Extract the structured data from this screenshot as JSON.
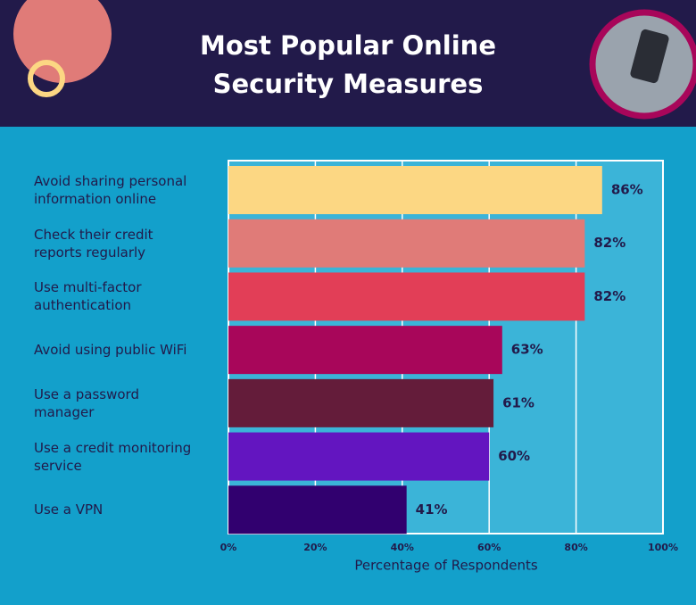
{
  "chart_data": {
    "type": "bar",
    "orientation": "horizontal",
    "title": "Most Popular Online Security Measures",
    "xlabel": "Percentage of Respondents",
    "categories": [
      "Avoid sharing personal information online",
      "Check their credit reports regularly",
      "Use multi-factor authentication",
      "Avoid using public WiFi",
      "Use a password manager",
      "Use a credit monitoring service",
      "Use a VPN"
    ],
    "values": [
      86,
      82,
      82,
      63,
      61,
      60,
      41
    ],
    "value_labels": [
      "86%",
      "82%",
      "82%",
      "63%",
      "61%",
      "60%",
      "41%"
    ],
    "colors": [
      "#fcd783",
      "#e07b78",
      "#e23e57",
      "#a8065a",
      "#641c3a",
      "#6315c0",
      "#31006f"
    ],
    "xlim": [
      0,
      100
    ],
    "xticks": [
      {
        "value": 0,
        "label": "0%"
      },
      {
        "value": 20,
        "label": "20%"
      },
      {
        "value": 40,
        "label": "40%"
      },
      {
        "value": 60,
        "label": "60%"
      },
      {
        "value": 80,
        "label": "80%"
      },
      {
        "value": 100,
        "label": "100%"
      }
    ],
    "grid": true
  }
}
